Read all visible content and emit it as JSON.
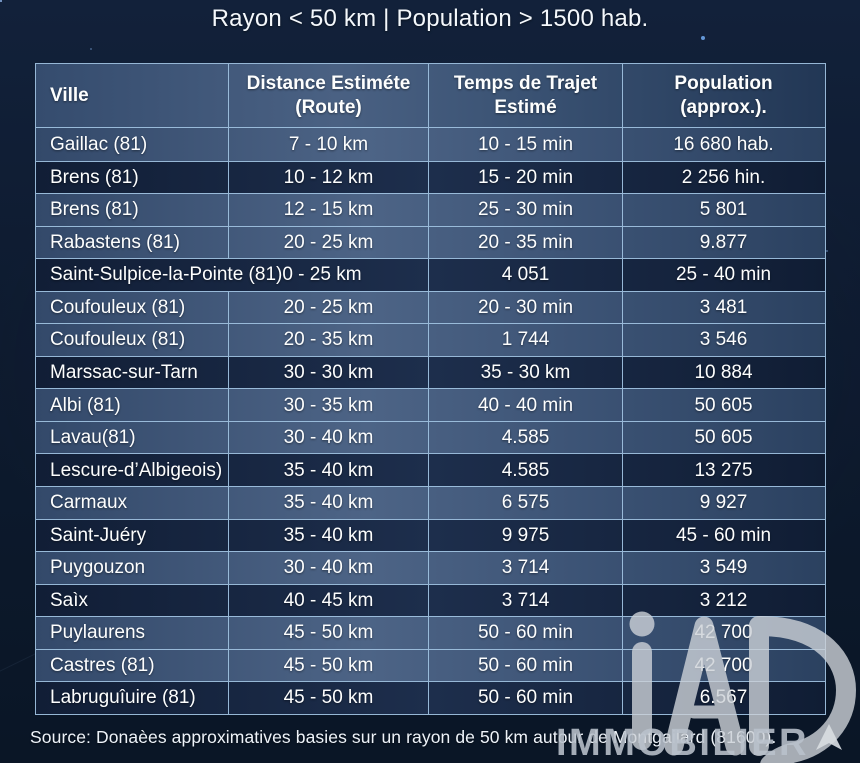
{
  "title": "Rayon < 50 km | Population > 1500 hab.",
  "table": {
    "headers": [
      "Ville",
      "Distance Estiméte\n(Route)",
      "Temps de Trajet\nEstimé",
      "Population\n(approx.)."
    ],
    "rows": [
      {
        "cells": [
          "Gaillac (81)",
          "7 - 10 km",
          "10 - 15 min",
          "16 680 hab."
        ],
        "shade": "light",
        "merged": false
      },
      {
        "cells": [
          "Brens (81)",
          "10 - 12 km",
          "15 - 20 min",
          "2 256 hin."
        ],
        "shade": "dark",
        "merged": false
      },
      {
        "cells": [
          "Brens (81)",
          "12 - 15 km",
          "25 - 30 min",
          "5 801"
        ],
        "shade": "light",
        "merged": false
      },
      {
        "cells": [
          "Rabastens (81)",
          "20 - 25 km",
          "20 - 35 min",
          "9.877"
        ],
        "shade": "light",
        "merged": false
      },
      {
        "cells": [
          "Saint-Sulpice-la-Pointe (81)0 - 25 km",
          "4 051",
          "25 - 40 min"
        ],
        "shade": "dark",
        "merged": true
      },
      {
        "cells": [
          "Coufouleux (81)",
          "20 - 25 km",
          "20 - 30 min",
          "3 481"
        ],
        "shade": "light",
        "merged": false
      },
      {
        "cells": [
          "Coufouleux (81)",
          "20 - 35 km",
          "1 744",
          "3 546"
        ],
        "shade": "light",
        "merged": false
      },
      {
        "cells": [
          "Marssac-sur-Tarn",
          "30 - 30 km",
          "35 - 30 km",
          "10 884"
        ],
        "shade": "dark",
        "merged": false
      },
      {
        "cells": [
          "Albi (81)",
          "30 - 35 km",
          "40 - 40 min",
          "50 605"
        ],
        "shade": "light",
        "merged": false
      },
      {
        "cells": [
          "Lavau(81)",
          "30 - 40 km",
          "4.585",
          "50 605"
        ],
        "shade": "light",
        "merged": false
      },
      {
        "cells": [
          "Lescure-d’Albigeois)",
          "35 - 40 km",
          "4.585",
          "13 275"
        ],
        "shade": "dark",
        "merged": false
      },
      {
        "cells": [
          "Carmaux",
          "35 - 40 km",
          "6 575",
          "9 927"
        ],
        "shade": "light",
        "merged": false
      },
      {
        "cells": [
          "Saint-Juéry",
          "35 - 40 km",
          "9 975",
          "45 - 60 min"
        ],
        "shade": "dark",
        "merged": false
      },
      {
        "cells": [
          "Puygouzon",
          "30 - 40 km",
          "3 714",
          "3 549"
        ],
        "shade": "light",
        "merged": false
      },
      {
        "cells": [
          "Saìx",
          "40 - 45 km",
          "3 714",
          "3 212"
        ],
        "shade": "dark",
        "merged": false
      },
      {
        "cells": [
          "Puylaurens",
          "45 - 50 km",
          "50 - 60 min",
          "42 700"
        ],
        "shade": "light",
        "merged": false
      },
      {
        "cells": [
          "Castres (81)",
          "45 - 50 km",
          "50 - 60 min",
          "42 700"
        ],
        "shade": "light",
        "merged": false
      },
      {
        "cells": [
          "Labruguîuire (81)",
          "45 - 50 km",
          "50 - 60 min",
          "6.567"
        ],
        "shade": "dark",
        "merged": false
      }
    ]
  },
  "footer": {
    "source": "Source: Donaèes approximatives basies sur un rayon de 50 km autour de Montgailard (81600)."
  },
  "watermark": {
    "brand": "iad",
    "subtext": "IMMOBILIER"
  },
  "colors": {
    "background": "#0e1b30",
    "row_light": "#44597b",
    "row_dark": "#16233c",
    "border": "#9cc0de",
    "text": "#ffffff",
    "watermark": "#c2c8d0"
  }
}
